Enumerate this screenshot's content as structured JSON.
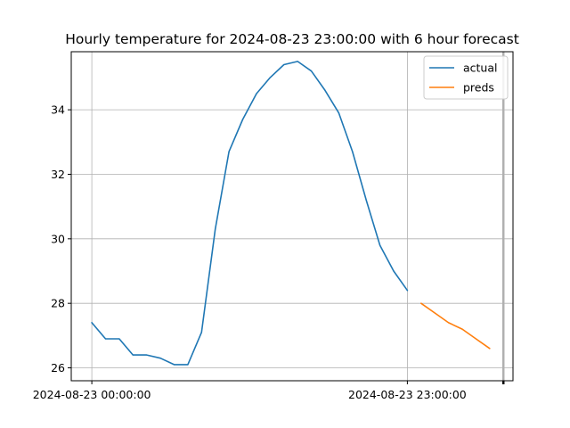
{
  "chart_data": {
    "type": "line",
    "title": "Hourly temperature for 2024-08-23 23:00:00 with 6 hour forecast",
    "xlabel": "",
    "ylabel": "",
    "x_tick_labels": [
      "2024-08-23 00:00:00",
      "2024-08-23 23:00:00"
    ],
    "y_ticks": [
      26,
      28,
      30,
      32,
      34
    ],
    "ylim": [
      25.6,
      35.8
    ],
    "xlim": [
      -1.5,
      30.7
    ],
    "grid": true,
    "legend_position": "top-right",
    "series": [
      {
        "name": "actual",
        "color": "#1f77b4",
        "x": [
          0,
          1,
          2,
          3,
          4,
          5,
          6,
          7,
          8,
          9,
          10,
          11,
          12,
          13,
          14,
          15,
          16,
          17,
          18,
          19,
          20,
          21,
          22,
          23
        ],
        "values": [
          27.4,
          26.9,
          26.9,
          26.4,
          26.4,
          26.3,
          26.1,
          26.1,
          27.1,
          30.3,
          32.7,
          33.7,
          34.5,
          35.0,
          35.4,
          35.5,
          35.2,
          34.6,
          33.9,
          32.7,
          31.2,
          29.8,
          29.0,
          28.4
        ]
      },
      {
        "name": "preds",
        "color": "#ff7f0e",
        "x": [
          24,
          25,
          26,
          27,
          28,
          29
        ],
        "values": [
          28.0,
          27.7,
          27.4,
          27.2,
          26.9,
          26.6
        ]
      }
    ]
  }
}
